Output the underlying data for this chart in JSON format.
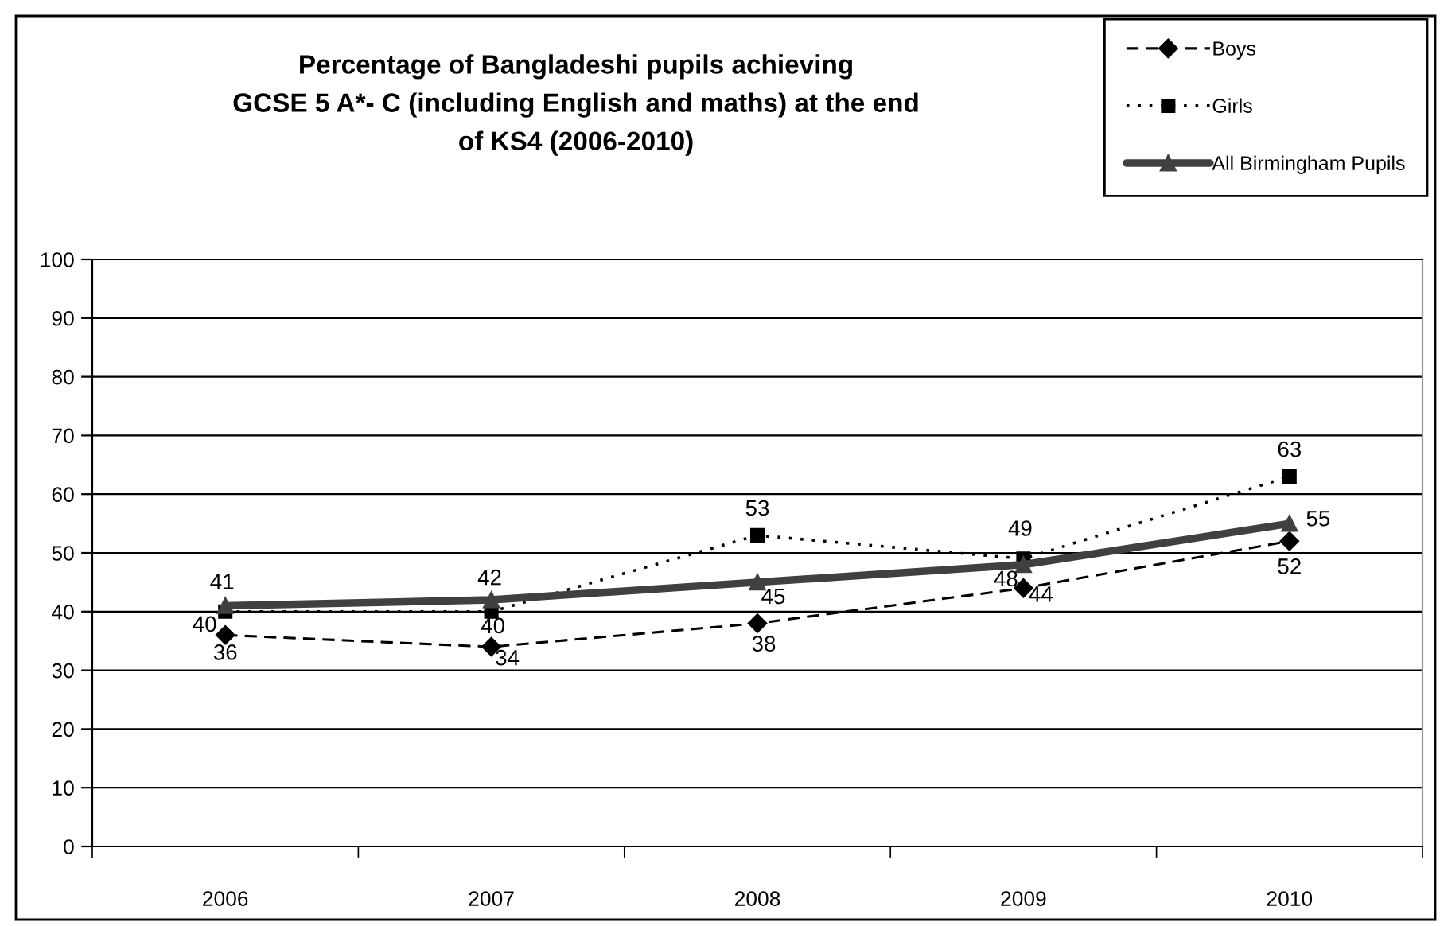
{
  "chart_data": {
    "type": "line",
    "title": "Percentage of Bangladeshi pupils achieving\nGCSE 5 A*- C (including English and maths) at the end\nof KS4 (2006-2010)",
    "categories": [
      "2006",
      "2007",
      "2008",
      "2009",
      "2010"
    ],
    "series": [
      {
        "name": "Boys",
        "color": "#000000",
        "values": [
          36,
          34,
          38,
          44,
          52
        ],
        "marker": "diamond",
        "line_style": "dashed"
      },
      {
        "name": "Girls",
        "color": "#000000",
        "values": [
          40,
          40,
          53,
          49,
          63
        ],
        "marker": "square",
        "line_style": "dotted"
      },
      {
        "name": "All Birmingham Pupils",
        "color": "#404040",
        "values": [
          41,
          42,
          45,
          48,
          55
        ],
        "marker": "triangle",
        "line_style": "solid"
      }
    ],
    "ylim": [
      0,
      100
    ],
    "yticks": [
      0,
      10,
      20,
      30,
      40,
      50,
      60,
      70,
      80,
      90,
      100
    ],
    "grid": "y",
    "legend": "top right",
    "data_labels": true
  }
}
